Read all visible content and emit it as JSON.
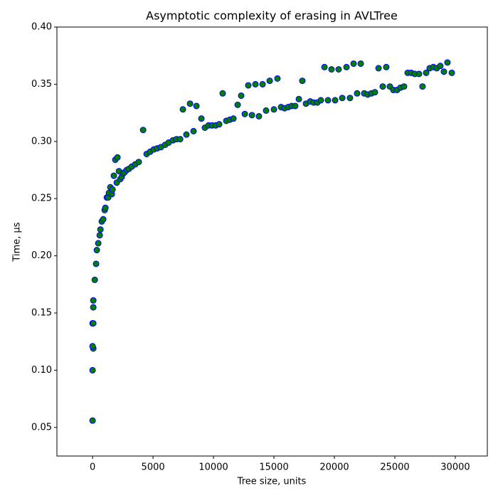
{
  "chart_data": {
    "type": "scatter",
    "title": "Asymptotic complexity of erasing in AVLTree",
    "x_label": "Tree size, units",
    "y_label": "Time, μs",
    "color": "#008000",
    "edgecolor": "#0000ff",
    "xlim": [
      -2950,
      32650
    ],
    "ylim": [
      0.025,
      0.4
    ],
    "xticks": [
      0,
      5000,
      10000,
      15000,
      20000,
      25000,
      30000
    ],
    "yticks": [
      0.05,
      {
        "value": 0.1,
        "label": "0.10"
      },
      0.15,
      {
        "value": 0.2,
        "label": "0.20"
      },
      0.25,
      {
        "value": 0.3,
        "label": "0.30"
      },
      0.35,
      {
        "value": 0.4,
        "label": "0.40"
      }
    ],
    "grid": false,
    "x": [
      0,
      0,
      60,
      0,
      0,
      60,
      60,
      60,
      180,
      290,
      350,
      470,
      590,
      650,
      760,
      880,
      1000,
      1060,
      1180,
      1290,
      1350,
      1470,
      1590,
      1650,
      1760,
      1880,
      2060,
      2000,
      2180,
      2290,
      2410,
      2530,
      2650,
      2820,
      3000,
      3240,
      3530,
      3820,
      4180,
      4470,
      4760,
      5060,
      5350,
      5650,
      6000,
      6290,
      6650,
      6940,
      7240,
      7470,
      7760,
      8060,
      8350,
      8590,
      9000,
      9290,
      9590,
      9880,
      10180,
      10470,
      10760,
      11060,
      11350,
      11650,
      12000,
      12290,
      12590,
      12880,
      13180,
      13470,
      13760,
      14060,
      14350,
      14650,
      15000,
      15290,
      15590,
      15880,
      16180,
      16470,
      16760,
      17060,
      17350,
      17650,
      18000,
      18290,
      18590,
      18880,
      19180,
      19470,
      19760,
      20060,
      20350,
      20650,
      21000,
      21290,
      21590,
      21880,
      22180,
      22470,
      22760,
      23060,
      23350,
      23650,
      24000,
      24290,
      24590,
      24880,
      25180,
      25470,
      25760,
      26060,
      26350,
      26650,
      27000,
      27290,
      27590,
      27880,
      28180,
      28470,
      28760,
      29060,
      29350,
      29710
    ],
    "values": [
      0.056,
      0.1,
      0.119,
      0.121,
      0.141,
      0.141,
      0.155,
      0.161,
      0.179,
      0.193,
      0.205,
      0.211,
      0.218,
      0.223,
      0.23,
      0.232,
      0.24,
      0.242,
      0.251,
      0.251,
      0.255,
      0.26,
      0.254,
      0.258,
      0.27,
      0.284,
      0.286,
      0.264,
      0.274,
      0.267,
      0.269,
      0.272,
      0.273,
      0.275,
      0.276,
      0.278,
      0.28,
      0.282,
      0.31,
      0.289,
      0.291,
      0.293,
      0.294,
      0.295,
      0.297,
      0.299,
      0.301,
      0.302,
      0.302,
      0.328,
      0.306,
      0.333,
      0.309,
      0.331,
      0.32,
      0.312,
      0.314,
      0.314,
      0.314,
      0.315,
      0.342,
      0.318,
      0.319,
      0.32,
      0.332,
      0.34,
      0.324,
      0.349,
      0.323,
      0.35,
      0.322,
      0.35,
      0.327,
      0.353,
      0.328,
      0.355,
      0.33,
      0.329,
      0.33,
      0.331,
      0.331,
      0.337,
      0.353,
      0.333,
      0.335,
      0.334,
      0.334,
      0.336,
      0.365,
      0.336,
      0.363,
      0.336,
      0.363,
      0.338,
      0.365,
      0.338,
      0.368,
      0.342,
      0.368,
      0.342,
      0.341,
      0.342,
      0.343,
      0.364,
      0.348,
      0.365,
      0.348,
      0.345,
      0.345,
      0.347,
      0.348,
      0.36,
      0.36,
      0.359,
      0.359,
      0.348,
      0.36,
      0.364,
      0.365,
      0.364,
      0.366,
      0.361,
      0.369,
      0.36
    ]
  }
}
